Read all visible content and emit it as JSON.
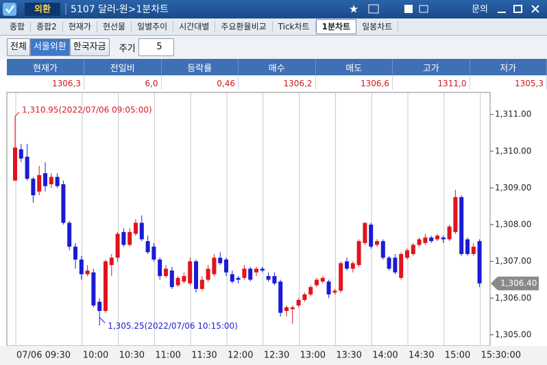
{
  "window": {
    "tab": "외환",
    "title": "5107 달러-원>1분차트",
    "menu": "문의"
  },
  "tabs": [
    "종합",
    "종합2",
    "현재가",
    "현선물",
    "일별추이",
    "시간대별",
    "주요환율비교",
    "Tick차트",
    "1분차트",
    "일봉차트"
  ],
  "selected_tab": "1분차트",
  "filters": [
    "전체",
    "서울외환",
    "한국자금"
  ],
  "selected_filter": "서울외환",
  "period": {
    "label": "주기",
    "value": "5"
  },
  "quote": {
    "headers": [
      "현재가",
      "전일비",
      "등락률",
      "매수",
      "매도",
      "고가",
      "저가"
    ],
    "values": [
      "1306,3",
      "6,0",
      "0,46",
      "1306,2",
      "1306,6",
      "1311,0",
      "1305,3"
    ]
  },
  "chart_data": {
    "type": "candlestick",
    "categories": [
      "07/06 09:30",
      null,
      null,
      null,
      null,
      null,
      null,
      null,
      null,
      null,
      null,
      "10:00",
      null,
      null,
      null,
      null,
      null,
      "10:30",
      null,
      null,
      null,
      null,
      null,
      "11:00",
      null,
      null,
      null,
      null,
      null,
      "11:30",
      null,
      null,
      null,
      null,
      null,
      "12:00",
      null,
      null,
      null,
      null,
      null,
      "12:30",
      null,
      null,
      null,
      null,
      null,
      "13:00",
      null,
      null,
      null,
      null,
      null,
      "13:30",
      null,
      null,
      null,
      null,
      null,
      "14:00",
      null,
      null,
      null,
      null,
      null,
      "14:30",
      null,
      null,
      null,
      null,
      null,
      "15:00",
      null,
      null,
      null,
      null,
      null,
      "15:30:00"
    ],
    "open": [
      1309.2,
      1310.05,
      1309.85,
      1309.25,
      1308.9,
      1309.4,
      1309.1,
      1309.3,
      1309.1,
      1308.05,
      1307.4,
      1307.05,
      1306.65,
      1306.7,
      1305.9,
      1305.65,
      1306.9,
      1307.1,
      1307.8,
      1307.45,
      1307.75,
      1308.05,
      1307.55,
      1307.4,
      1307.05,
      1306.6,
      1306.75,
      1306.35,
      1306.45,
      1306.4,
      1307.0,
      1306.25,
      1306.5,
      1306.65,
      1307.1,
      1307.05,
      1306.65,
      1306.55,
      1306.55,
      1306.8,
      1306.7,
      1306.8,
      1306.6,
      1306.6,
      1306.45,
      1305.65,
      1305.7,
      1305.8,
      1305.95,
      1306.1,
      1306.35,
      1306.45,
      1306.45,
      1306.15,
      1306.2,
      1307.0,
      1306.8,
      1306.9,
      1307.5,
      1308.0,
      1307.45,
      1307.55,
      1307.1,
      1307.1,
      1306.55,
      1307.1,
      1307.2,
      1307.45,
      1307.5,
      1307.65,
      1307.6,
      1307.65,
      1307.6,
      1307.8,
      1308.75,
      1307.6,
      1307.2,
      1307.55
    ],
    "high": [
      1310.95,
      1310.2,
      1310.2,
      1309.3,
      1309.6,
      1309.7,
      1309.4,
      1309.4,
      1309.2,
      1308.1,
      1307.5,
      1307.15,
      1306.9,
      1306.8,
      1306.0,
      1307.05,
      1307.2,
      1307.8,
      1307.9,
      1307.9,
      1308.15,
      1308.25,
      1307.7,
      1307.5,
      1307.1,
      1306.9,
      1306.85,
      1306.6,
      1306.7,
      1307.1,
      1307.05,
      1306.6,
      1306.9,
      1307.2,
      1307.25,
      1307.1,
      1306.75,
      1306.6,
      1306.9,
      1306.85,
      1306.85,
      1306.85,
      1306.7,
      1306.7,
      1306.5,
      1305.8,
      1305.8,
      1306.0,
      1306.15,
      1306.35,
      1306.55,
      1306.6,
      1306.5,
      1306.25,
      1307.0,
      1307.1,
      1307.0,
      1307.6,
      1308.05,
      1308.05,
      1307.6,
      1307.6,
      1307.15,
      1307.2,
      1307.25,
      1307.35,
      1307.5,
      1307.65,
      1307.75,
      1307.7,
      1307.75,
      1307.7,
      1308.0,
      1308.95,
      1308.8,
      1307.65,
      1307.5,
      1307.6
    ],
    "low": [
      1309.2,
      1309.7,
      1309.2,
      1308.6,
      1308.8,
      1308.9,
      1309.0,
      1309.0,
      1308.0,
      1307.3,
      1306.8,
      1306.5,
      1306.6,
      1305.75,
      1305.25,
      1305.6,
      1306.6,
      1307.0,
      1307.4,
      1307.4,
      1307.7,
      1307.55,
      1307.2,
      1307.0,
      1306.5,
      1306.55,
      1306.25,
      1306.3,
      1306.4,
      1306.35,
      1306.15,
      1306.2,
      1306.45,
      1306.6,
      1306.9,
      1306.6,
      1306.4,
      1306.4,
      1306.5,
      1306.45,
      1306.6,
      1306.7,
      1306.45,
      1306.35,
      1305.5,
      1305.5,
      1305.3,
      1305.75,
      1305.9,
      1306.05,
      1306.3,
      1306.4,
      1306.0,
      1306.1,
      1306.15,
      1306.75,
      1306.7,
      1306.85,
      1307.45,
      1307.35,
      1307.4,
      1307.05,
      1306.75,
      1306.65,
      1306.5,
      1307.05,
      1307.15,
      1307.4,
      1307.45,
      1307.5,
      1307.55,
      1307.5,
      1307.55,
      1307.75,
      1307.15,
      1307.15,
      1307.15,
      1306.3
    ],
    "close": [
      1310.1,
      1309.8,
      1309.25,
      1308.8,
      1309.35,
      1309.05,
      1309.3,
      1309.05,
      1308.05,
      1307.4,
      1307.05,
      1306.65,
      1306.75,
      1305.8,
      1305.65,
      1307.0,
      1307.1,
      1307.75,
      1307.45,
      1307.8,
      1308.05,
      1307.6,
      1307.25,
      1307.05,
      1306.6,
      1306.8,
      1306.3,
      1306.55,
      1306.6,
      1307.0,
      1306.25,
      1306.5,
      1306.8,
      1307.1,
      1306.95,
      1306.7,
      1306.45,
      1306.5,
      1306.8,
      1306.5,
      1306.8,
      1306.75,
      1306.5,
      1306.4,
      1305.6,
      1305.75,
      1305.75,
      1305.95,
      1306.1,
      1306.3,
      1306.5,
      1306.55,
      1306.1,
      1306.2,
      1306.95,
      1306.8,
      1306.95,
      1307.55,
      1308.05,
      1307.4,
      1307.55,
      1307.1,
      1306.8,
      1306.7,
      1307.2,
      1307.3,
      1307.45,
      1307.6,
      1307.65,
      1307.55,
      1307.7,
      1307.6,
      1307.95,
      1308.75,
      1307.2,
      1307.2,
      1307.4,
      1306.4
    ],
    "up_color": "#e0141e",
    "down_color": "#1b1bd6",
    "ylim": [
      1304.7,
      1311.6
    ],
    "yticks": [
      {
        "value": 1305,
        "label": "1,305.00"
      },
      {
        "value": 1306,
        "label": "1,306.00"
      },
      {
        "value": 1307,
        "label": "1,307.00"
      },
      {
        "value": 1308,
        "label": "1,308.00"
      },
      {
        "value": 1309,
        "label": "1,309.00"
      },
      {
        "value": 1310,
        "label": "1,310.00"
      },
      {
        "value": 1311,
        "label": "1,311.00"
      }
    ],
    "annotations": [
      {
        "text": "1,310.95(2022/07/06 09:05:00)",
        "value": 1310.95,
        "field": "high"
      },
      {
        "text": "1,305.25(2022/07/06 10:15:00)",
        "value": 1305.25,
        "field": "low"
      }
    ],
    "last_price": {
      "value": 1306.4,
      "label": "1,306.40"
    },
    "grid": true
  }
}
